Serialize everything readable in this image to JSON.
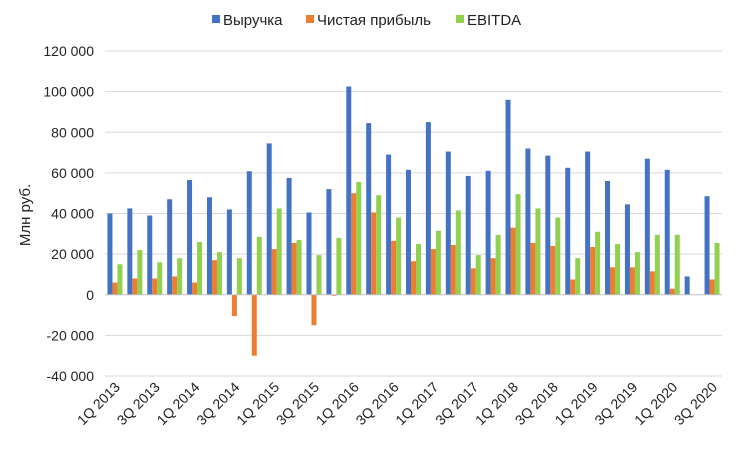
{
  "chart_data": {
    "type": "bar",
    "ylabel": "Млн руб.",
    "ylim": [
      -40000,
      120000
    ],
    "y_ticks": [
      120000,
      100000,
      80000,
      60000,
      40000,
      20000,
      0,
      -20000,
      -40000
    ],
    "y_tick_labels": [
      "120 000",
      "100 000",
      "80 000",
      "60 000",
      "40 000",
      "20 000",
      "0",
      "-20 000",
      "-40 000"
    ],
    "grid": "horizontal",
    "legend_position": "top",
    "categories": [
      "1Q 2013",
      "2Q 2013",
      "3Q 2013",
      "4Q 2013",
      "1Q 2014",
      "2Q 2014",
      "3Q 2014",
      "4Q 2014",
      "1Q 2015",
      "2Q 2015",
      "3Q 2015",
      "4Q 2015",
      "1Q 2016",
      "2Q 2016",
      "3Q 2016",
      "4Q 2016",
      "1Q 2017",
      "2Q 2017",
      "3Q 2017",
      "4Q 2017",
      "1Q 2018",
      "2Q 2018",
      "3Q 2018",
      "4Q 2018",
      "1Q 2019",
      "2Q 2019",
      "3Q 2019",
      "4Q 2019",
      "1Q 2020",
      "2Q 2020",
      "3Q 2020"
    ],
    "category_labels": [
      "1Q 2013",
      "",
      "3Q 2013",
      "",
      "1Q 2014",
      "",
      "3Q 2014",
      "",
      "1Q 2015",
      "",
      "3Q 2015",
      "",
      "1Q 2016",
      "",
      "3Q 2016",
      "",
      "1Q 2017",
      "",
      "3Q 2017",
      "",
      "1Q 2018",
      "",
      "3Q 2018",
      "",
      "1Q 2019",
      "",
      "3Q 2019",
      "",
      "1Q 2020",
      "",
      "3Q 2020"
    ],
    "series": [
      {
        "name": "Выручка",
        "color": "#4472C4",
        "values": [
          40000,
          42500,
          39000,
          47000,
          56500,
          48000,
          42000,
          60800,
          74500,
          57500,
          40500,
          52000,
          102500,
          84500,
          69000,
          61500,
          85000,
          70500,
          58500,
          61000,
          96000,
          72000,
          68500,
          62500,
          70500,
          56000,
          44500,
          67000,
          61500,
          9000,
          48500
        ]
      },
      {
        "name": "Чистая прибыль",
        "color": "#ED7D31",
        "values": [
          6000,
          8000,
          8000,
          9000,
          6000,
          17000,
          -10500,
          -30000,
          22500,
          25500,
          -15000,
          -500,
          50000,
          40500,
          26500,
          16500,
          22500,
          24500,
          13000,
          18000,
          33000,
          25500,
          24000,
          7500,
          23500,
          13500,
          13500,
          11500,
          3000,
          0,
          7500
        ]
      },
      {
        "name": "EBITDA",
        "color": "#92D050",
        "values": [
          15000,
          22000,
          16000,
          18000,
          26000,
          21000,
          18000,
          28500,
          42500,
          27000,
          19500,
          28000,
          55500,
          49000,
          38000,
          25000,
          31500,
          41500,
          19500,
          29500,
          49500,
          42500,
          38000,
          18000,
          31000,
          25000,
          21000,
          29500,
          29500,
          0,
          25500
        ]
      }
    ]
  }
}
